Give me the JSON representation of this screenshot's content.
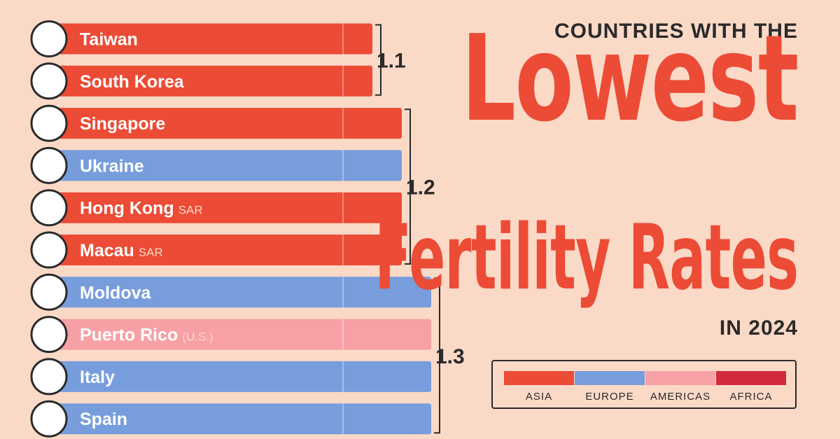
{
  "title": {
    "line1": "COUNTRIES WITH THE",
    "line2": "Lowest",
    "line3": "Fertility Rates",
    "line4": "IN 2024"
  },
  "legend": [
    {
      "label": "ASIA",
      "color": "#ec4b35"
    },
    {
      "label": "EUROPE",
      "color": "#779ddd"
    },
    {
      "label": "AMERICAS",
      "color": "#f7a0a5"
    },
    {
      "label": "AFRICA",
      "color": "#d12b3c"
    }
  ],
  "chart_data": {
    "type": "bar",
    "orientation": "horizontal",
    "categories": [
      "Taiwan",
      "South Korea",
      "Singapore",
      "Ukraine",
      "Hong Kong",
      "Macau",
      "Moldova",
      "Puerto Rico",
      "Italy",
      "Spain"
    ],
    "category_suffixes": [
      "",
      "",
      "",
      "",
      "SAR",
      "SAR",
      "",
      "(U.S.)",
      "",
      ""
    ],
    "values": [
      1.1,
      1.1,
      1.2,
      1.2,
      1.2,
      1.2,
      1.3,
      1.3,
      1.3,
      1.3
    ],
    "regions": [
      "Asia",
      "Asia",
      "Asia",
      "Europe",
      "Asia",
      "Asia",
      "Europe",
      "Americas",
      "Europe",
      "Europe"
    ],
    "flags": [
      "taiwan-flag",
      "south-korea-flag",
      "singapore-flag",
      "ukraine-flag",
      "hong-kong-flag",
      "macau-flag",
      "moldova-flag",
      "puerto-rico-flag",
      "italy-flag",
      "spain-flag"
    ],
    "group_labels": [
      {
        "label": "1.1",
        "from": 0,
        "to": 1
      },
      {
        "label": "1.2",
        "from": 2,
        "to": 5
      },
      {
        "label": "1.3",
        "from": 6,
        "to": 9
      }
    ],
    "grid": true,
    "legend_position": "bottom-right"
  }
}
